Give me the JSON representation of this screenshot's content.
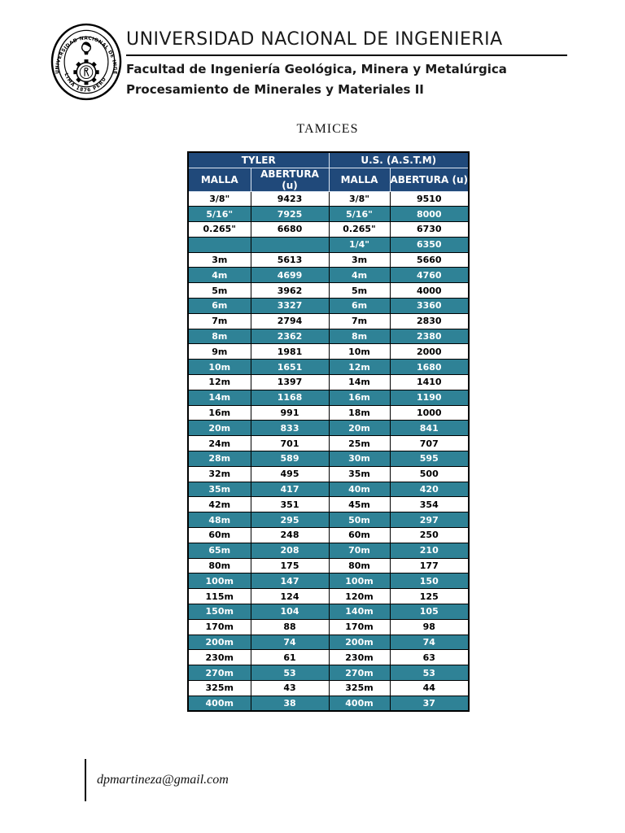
{
  "header": {
    "university": "UNIVERSIDAD NACIONAL DE INGENIERIA",
    "faculty": "Facultad de Ingeniería Geológica, Minera y Metalúrgica",
    "course": "Procesamiento de Minerales y Materiales II",
    "logo": {
      "ring_text": "UNIVERSIDAD NACIONAL DE INGENIERIA",
      "bottom_text": "LIMA 1876 PERU"
    }
  },
  "title": "TAMICES",
  "table": {
    "groups": [
      {
        "label": "TYLER"
      },
      {
        "label": "U.S. (A.S.T.M)"
      }
    ],
    "columns": [
      "MALLA",
      "ABERTURA (u)",
      "MALLA",
      "ABERTURA (u)"
    ],
    "rows": [
      [
        "3/8\"",
        "9423",
        "3/8\"",
        "9510"
      ],
      [
        "5/16\"",
        "7925",
        "5/16\"",
        "8000"
      ],
      [
        "0.265\"",
        "6680",
        "0.265\"",
        "6730"
      ],
      [
        "",
        "",
        "1/4\"",
        "6350"
      ],
      [
        "3m",
        "5613",
        "3m",
        "5660"
      ],
      [
        "4m",
        "4699",
        "4m",
        "4760"
      ],
      [
        "5m",
        "3962",
        "5m",
        "4000"
      ],
      [
        "6m",
        "3327",
        "6m",
        "3360"
      ],
      [
        "7m",
        "2794",
        "7m",
        "2830"
      ],
      [
        "8m",
        "2362",
        "8m",
        "2380"
      ],
      [
        "9m",
        "1981",
        "10m",
        "2000"
      ],
      [
        "10m",
        "1651",
        "12m",
        "1680"
      ],
      [
        "12m",
        "1397",
        "14m",
        "1410"
      ],
      [
        "14m",
        "1168",
        "16m",
        "1190"
      ],
      [
        "16m",
        "991",
        "18m",
        "1000"
      ],
      [
        "20m",
        "833",
        "20m",
        "841"
      ],
      [
        "24m",
        "701",
        "25m",
        "707"
      ],
      [
        "28m",
        "589",
        "30m",
        "595"
      ],
      [
        "32m",
        "495",
        "35m",
        "500"
      ],
      [
        "35m",
        "417",
        "40m",
        "420"
      ],
      [
        "42m",
        "351",
        "45m",
        "354"
      ],
      [
        "48m",
        "295",
        "50m",
        "297"
      ],
      [
        "60m",
        "248",
        "60m",
        "250"
      ],
      [
        "65m",
        "208",
        "70m",
        "210"
      ],
      [
        "80m",
        "175",
        "80m",
        "177"
      ],
      [
        "100m",
        "147",
        "100m",
        "150"
      ],
      [
        "115m",
        "124",
        "120m",
        "125"
      ],
      [
        "150m",
        "104",
        "140m",
        "105"
      ],
      [
        "170m",
        "88",
        "170m",
        "98"
      ],
      [
        "200m",
        "74",
        "200m",
        "74"
      ],
      [
        "230m",
        "61",
        "230m",
        "63"
      ],
      [
        "270m",
        "53",
        "270m",
        "53"
      ],
      [
        "325m",
        "43",
        "325m",
        "44"
      ],
      [
        "400m",
        "38",
        "400m",
        "37"
      ]
    ]
  },
  "footer": {
    "email": "dpmartineza@gmail.com"
  },
  "colors": {
    "header_bg": "#20497A",
    "teal_row_bg": "#2F8296",
    "border": "#000000",
    "row_text_dark": "#000000",
    "row_text_light": "#FFFFFF"
  }
}
